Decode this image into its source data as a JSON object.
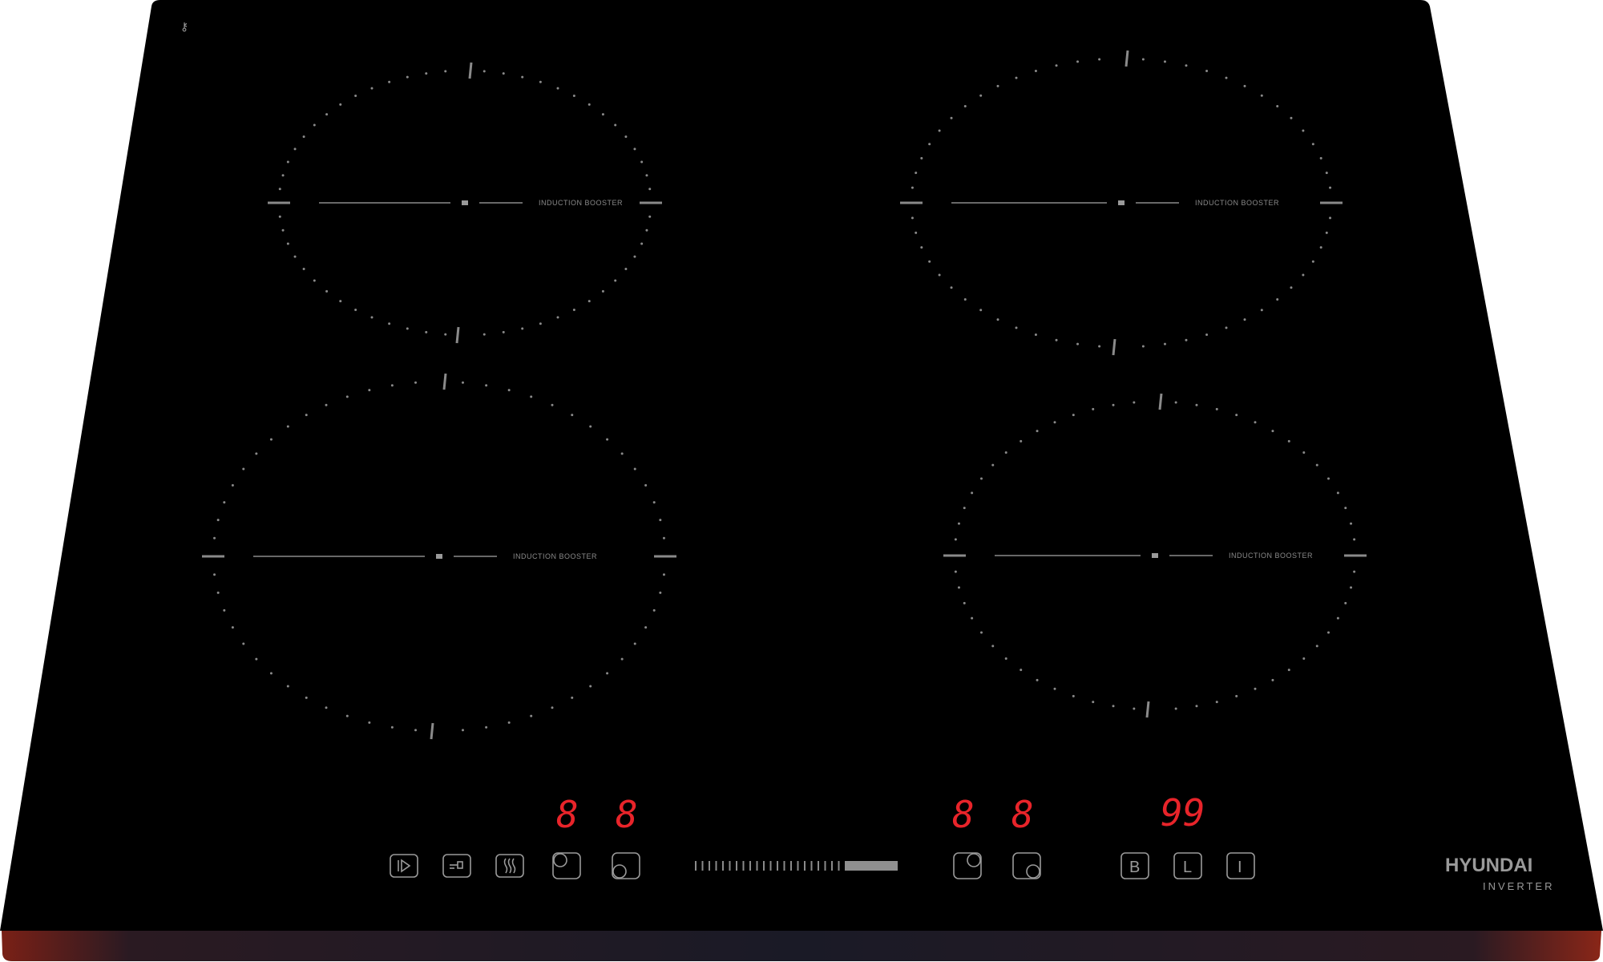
{
  "zones": [
    {
      "id": "rear-left",
      "label": "INDUCTION BOOSTER"
    },
    {
      "id": "rear-right",
      "label": "INDUCTION BOOSTER"
    },
    {
      "id": "front-left",
      "label": "INDUCTION BOOSTER"
    },
    {
      "id": "front-right",
      "label": "INDUCTION BOOSTER"
    }
  ],
  "displays": {
    "zone1": "8",
    "zone2": "8",
    "zone3": "8",
    "zone4": "8",
    "timer": "99"
  },
  "buttons": {
    "left": [
      "play-pause-icon",
      "keep-warm-icon",
      "heat-waves-icon",
      "zone-rear-left-icon",
      "zone-front-left-icon"
    ],
    "right": [
      "zone-rear-right-icon",
      "zone-front-right-icon"
    ],
    "boost_label": "B",
    "timer_label": "L",
    "power_label": "I"
  },
  "slider": {
    "segments": 24,
    "level_fraction": 0.0
  },
  "brand": {
    "name": "HYUNDAI",
    "sub": "INVERTER"
  },
  "colors": {
    "glass": "#000000",
    "display": "#e8242a",
    "print": "#9a9a9a",
    "edge": "#6a1c14"
  }
}
